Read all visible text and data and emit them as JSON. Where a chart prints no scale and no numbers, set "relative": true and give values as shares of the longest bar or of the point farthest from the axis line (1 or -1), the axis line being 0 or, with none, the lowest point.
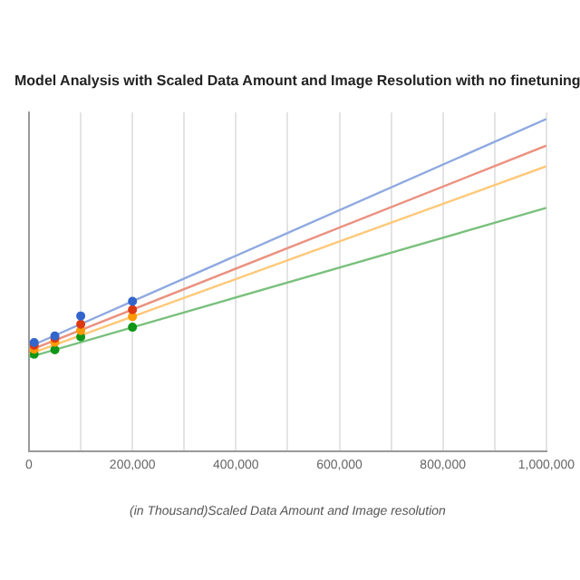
{
  "chart_data": {
    "type": "scatter",
    "title": "Model Analysis with Scaled Data Amount and Image Resolution with no finetuning",
    "xlabel": "(in Thousand)Scaled Data Amount and Image resolution",
    "relative": true,
    "xlim": [
      0,
      1000000
    ],
    "xticks": [
      0,
      {
        "value": 100000,
        "label": null
      },
      {
        "value": 200000,
        "label": "200,000"
      },
      {
        "value": 300000,
        "label": null
      },
      {
        "value": 400000,
        "label": "400,000"
      },
      {
        "value": 500000,
        "label": null
      },
      {
        "value": 600000,
        "label": "600,000"
      },
      {
        "value": 700000,
        "label": null
      },
      {
        "value": 800000,
        "label": "800,000"
      },
      {
        "value": 900000,
        "label": null
      },
      {
        "value": 1000000,
        "label": "1,000,000"
      }
    ],
    "tick_labels": "x",
    "grid": "x",
    "legend": false,
    "series": [
      {
        "type": "line",
        "marker": "none",
        "color": "#8fa9e0",
        "x": [
          0,
          1000000
        ],
        "values": [
          0.315,
          1.0
        ]
      },
      {
        "type": "line",
        "marker": "none",
        "color": "#eb9180",
        "x": [
          0,
          1000000
        ],
        "values": [
          0.304,
          0.92
        ]
      },
      {
        "type": "line",
        "marker": "none",
        "color": "#ffc878",
        "x": [
          0,
          1000000
        ],
        "values": [
          0.293,
          0.858
        ]
      },
      {
        "type": "line",
        "marker": "none",
        "color": "#79c07c",
        "x": [
          0,
          1000000
        ],
        "values": [
          0.284,
          0.733
        ]
      },
      {
        "marker": "circle",
        "color": "#3366cc",
        "x": [
          10000,
          50000,
          100000,
          200000
        ],
        "values": [
          0.328,
          0.348,
          0.408,
          0.452
        ]
      },
      {
        "marker": "circle",
        "color": "#dc3912",
        "x": [
          10000,
          50000,
          100000,
          200000
        ],
        "values": [
          0.32,
          0.341,
          0.383,
          0.427
        ]
      },
      {
        "marker": "circle",
        "color": "#ff9900",
        "x": [
          10000,
          50000,
          100000,
          200000
        ],
        "values": [
          0.308,
          0.329,
          0.364,
          0.406
        ]
      },
      {
        "marker": "circle",
        "color": "#109618",
        "x": [
          10000,
          50000,
          100000,
          200000
        ],
        "values": [
          0.293,
          0.306,
          0.345,
          0.374
        ]
      }
    ]
  }
}
